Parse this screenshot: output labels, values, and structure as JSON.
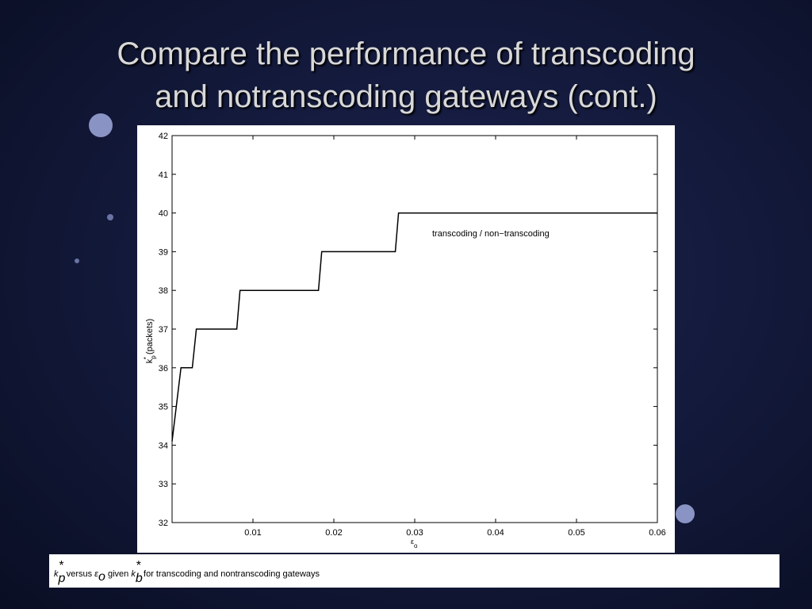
{
  "slide_title": [
    "Compare the performance of transcoding",
    "and notranscoding gateways (cont.)"
  ],
  "caption": [
    "k",
    "p",
    "*",
    " versus ",
    "ε",
    "o",
    " given ",
    "k",
    "b",
    "*",
    " for transcoding and nontranscoding gateways"
  ],
  "chart_data": {
    "type": "line",
    "ylabel": [
      "k",
      "p",
      "*",
      " (packets)"
    ],
    "xlabel": [
      "ε",
      "o"
    ],
    "annotation": "transcoding / non−transcoding",
    "series": [
      {
        "name": "transcoding / non-transcoding",
        "color": "#000000",
        "x": [
          0,
          0.0011,
          0.0025,
          0.003,
          0.008,
          0.0084,
          0.0181,
          0.0185,
          0.0276,
          0.028,
          0.06
        ],
        "values": [
          34.1,
          36,
          36,
          37,
          37,
          38,
          38,
          39,
          39,
          40,
          40
        ]
      }
    ],
    "xlim": [
      0,
      0.06
    ],
    "xticks": [
      0.01,
      0.02,
      0.03,
      0.04,
      0.05,
      0.06
    ],
    "ylim": [
      32,
      42
    ],
    "yticks": [
      32,
      33,
      34,
      35,
      36,
      37,
      38,
      39,
      40,
      41,
      42
    ],
    "grid": false
  }
}
